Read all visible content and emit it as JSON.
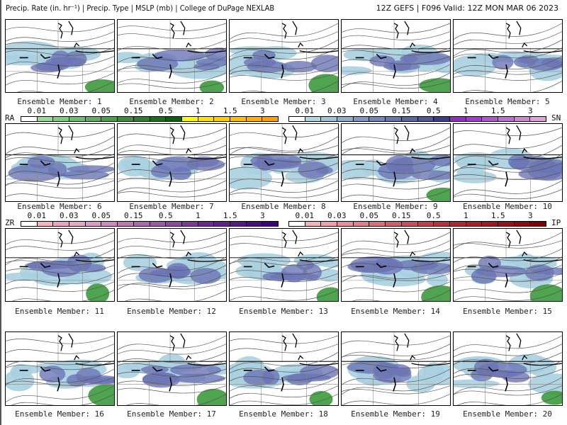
{
  "header": {
    "title": "Precip. Rate (in. hr⁻¹) | Precip. Type | MSLP (mb) | College of DuPage NEXLAB",
    "valid": "12Z GEFS | F096 Valid: 12Z MON MAR 06 2023"
  },
  "members": [
    "Ensemble Member: 1",
    "Ensemble Member: 2",
    "Ensemble Member: 3",
    "Ensemble Member: 4",
    "Ensemble Member: 5",
    "Ensemble Member: 6",
    "Ensemble Member: 7",
    "Ensemble Member: 8",
    "Ensemble Member: 9",
    "Ensemble Member: 10",
    "Ensemble Member: 11",
    "Ensemble Member: 12",
    "Ensemble Member: 13",
    "Ensemble Member: 14",
    "Ensemble Member: 15",
    "Ensemble Member: 16",
    "Ensemble Member: 17",
    "Ensemble Member: 18",
    "Ensemble Member: 19",
    "Ensemble Member: 20"
  ],
  "legends": [
    {
      "name": "RA",
      "ticks": [
        "0.01",
        "0.03",
        "0.05",
        "0.15",
        "0.5",
        "1",
        "1.5",
        "3"
      ],
      "colors": [
        "#ffffff",
        "#90e090",
        "#7cd07c",
        "#6cc06c",
        "#5cb05c",
        "#4ca04c",
        "#3c903c",
        "#2c802c",
        "#1c701c",
        "#0c600c",
        "#ffff00",
        "#ffe000",
        "#ffd000",
        "#ffc000",
        "#ffb000",
        "#ffa000"
      ]
    },
    {
      "name": "SN",
      "ticks": [
        "0.01",
        "0.03",
        "0.05",
        "0.15",
        "0.5",
        "1",
        "1.5",
        "3"
      ],
      "colors": [
        "#ffffff",
        "#add8e6",
        "#9cc4da",
        "#8cb0ce",
        "#8098c4",
        "#7488ba",
        "#6878ae",
        "#5c68a2",
        "#505896",
        "#3c3c88",
        "#9030c0",
        "#a040c8",
        "#b058cc",
        "#c070d0",
        "#d088d4",
        "#e0a0dc"
      ]
    },
    {
      "name": "ZR",
      "ticks": [
        "0.01",
        "0.03",
        "0.05",
        "0.15",
        "0.5",
        "1",
        "1.5",
        "3"
      ],
      "colors": [
        "#ffffff",
        "#ffb0c0",
        "#f0a0c0",
        "#e8a8c8",
        "#e098c8",
        "#d088c0",
        "#c078b8",
        "#b068b0",
        "#a058a8",
        "#9048a0",
        "#803898",
        "#702890",
        "#642088",
        "#581880",
        "#4c1078",
        "#400080"
      ]
    },
    {
      "name": "IP",
      "ticks": [
        "0.01",
        "0.03",
        "0.05",
        "0.15",
        "0.5",
        "1",
        "1.5",
        "3"
      ],
      "colors": [
        "#ffffff",
        "#f8b0b8",
        "#f0a0a8",
        "#e89098",
        "#e08088",
        "#d87078",
        "#d06068",
        "#c85058",
        "#c04048",
        "#b83038",
        "#b02830",
        "#a82028",
        "#a01820",
        "#981018",
        "#900810",
        "#800000"
      ]
    }
  ]
}
